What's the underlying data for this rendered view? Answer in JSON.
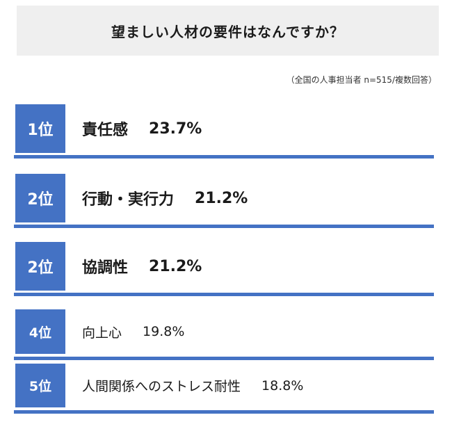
{
  "chart_data": {
    "type": "table",
    "title": "望ましい人材の要件はなんですか？",
    "note": "（全国の人事担当者 n=515/複数回答）",
    "rows": [
      {
        "rank": "1位",
        "label": "責任感",
        "value": "23.7%"
      },
      {
        "rank": "2位",
        "label": "行動・実行力",
        "value": "21.2%"
      },
      {
        "rank": "2位",
        "label": "協調性",
        "value": "21.2%"
      },
      {
        "rank": "4位",
        "label": "向上心",
        "value": "19.8%"
      },
      {
        "rank": "5位",
        "label": "人間関係へのストレス耐性",
        "value": "18.8%"
      }
    ],
    "values": [
      23.7,
      21.2,
      21.2,
      19.8,
      18.8
    ],
    "colors": {
      "accent": "#4472c4",
      "title_bg": "#efefef"
    }
  }
}
